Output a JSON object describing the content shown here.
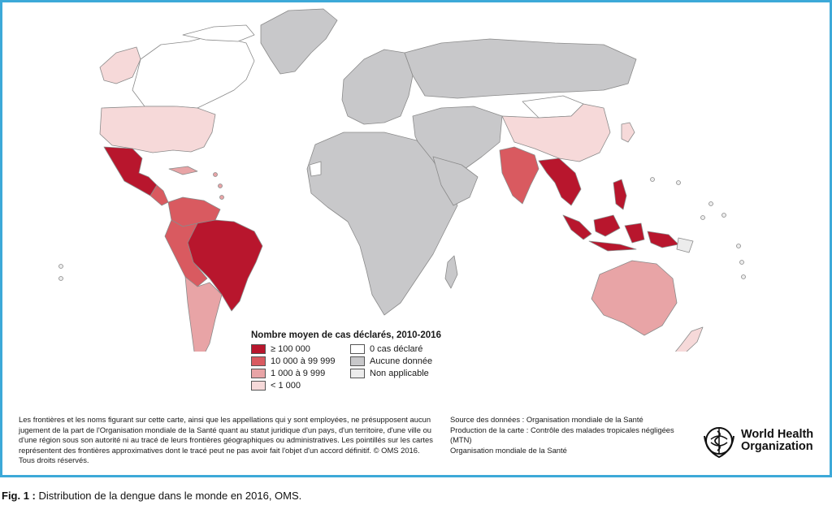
{
  "colors": {
    "ge_100000": "#b8162d",
    "10000_99999": "#d95a60",
    "1000_9999": "#e8a4a6",
    "lt_1000": "#f6d9d9",
    "zero": "#ffffff",
    "no_data": "#c8c8ca",
    "not_applicable": "#ececec",
    "frame": "#3da9d8"
  },
  "legend": {
    "title": "Nombre moyen de cas déclarés, 2010-2016",
    "items": [
      {
        "label": "≥ 100 000",
        "color": "#b8162d"
      },
      {
        "label": "0 cas déclaré",
        "color": "#ffffff"
      },
      {
        "label": "10 000 à 99 999",
        "color": "#d95a60"
      },
      {
        "label": "Aucune donnée",
        "color": "#c8c8ca"
      },
      {
        "label": "1 000 à 9 999",
        "color": "#e8a4a6"
      },
      {
        "label": "Non applicable",
        "color": "#ececec"
      },
      {
        "label": "< 1 000",
        "color": "#f6d9d9"
      }
    ]
  },
  "disclaimer": "Les frontières et les noms figurant sur cette carte, ainsi que les appellations qui y sont employées, ne présupposent aucun jugement de la part de l'Organisation mondiale de la Santé quant au statut juridique d'un pays, d'un territoire, d'une ville ou d'une région sous son autorité ni au tracé de leurs frontières géographiques ou administratives. Les pointillés sur les cartes représentent des frontières approximatives dont le tracé peut ne pas avoir fait l'objet d'un accord définitif. © OMS 2016. Tous droits réservés.",
  "source": {
    "line1": "Source des données : Organisation mondiale de la Santé",
    "line2": "Production de la carte : Contrôle des malades tropicales négligées (MTN)",
    "line3": "Organisation mondiale de la Santé"
  },
  "logo": {
    "line1": "World Health",
    "line2": "Organization",
    "icon": "who-emblem-icon"
  },
  "caption": {
    "label": "Fig. 1 :",
    "text": " Distribution de la dengue dans le monde en 2016, OMS."
  }
}
